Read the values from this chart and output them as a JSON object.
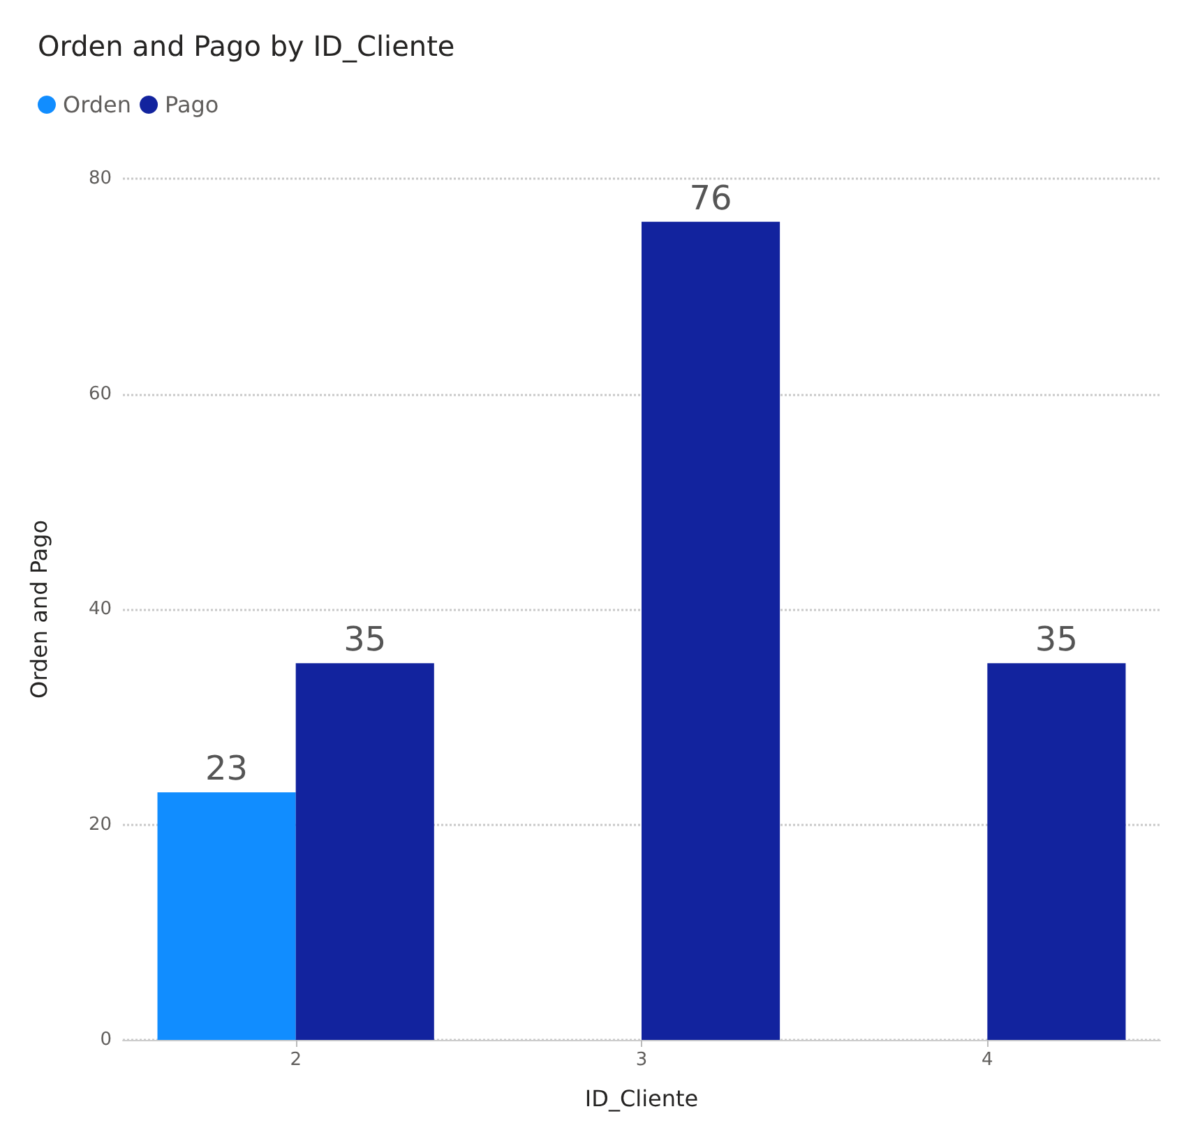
{
  "chart_data": {
    "type": "bar",
    "title": "Orden and Pago by ID_Cliente",
    "xlabel": "ID_Cliente",
    "ylabel": "Orden and Pago",
    "categories": [
      "2",
      "3",
      "4"
    ],
    "series": [
      {
        "name": "Orden",
        "color": "#118dff",
        "values": [
          23,
          null,
          null
        ]
      },
      {
        "name": "Pago",
        "color": "#12239e",
        "values": [
          35,
          76,
          35
        ]
      }
    ],
    "ylim": [
      0,
      80
    ],
    "yticks": [
      0,
      20,
      40,
      60,
      80
    ],
    "grid": "y",
    "legend": "top left",
    "data_labels": true
  }
}
